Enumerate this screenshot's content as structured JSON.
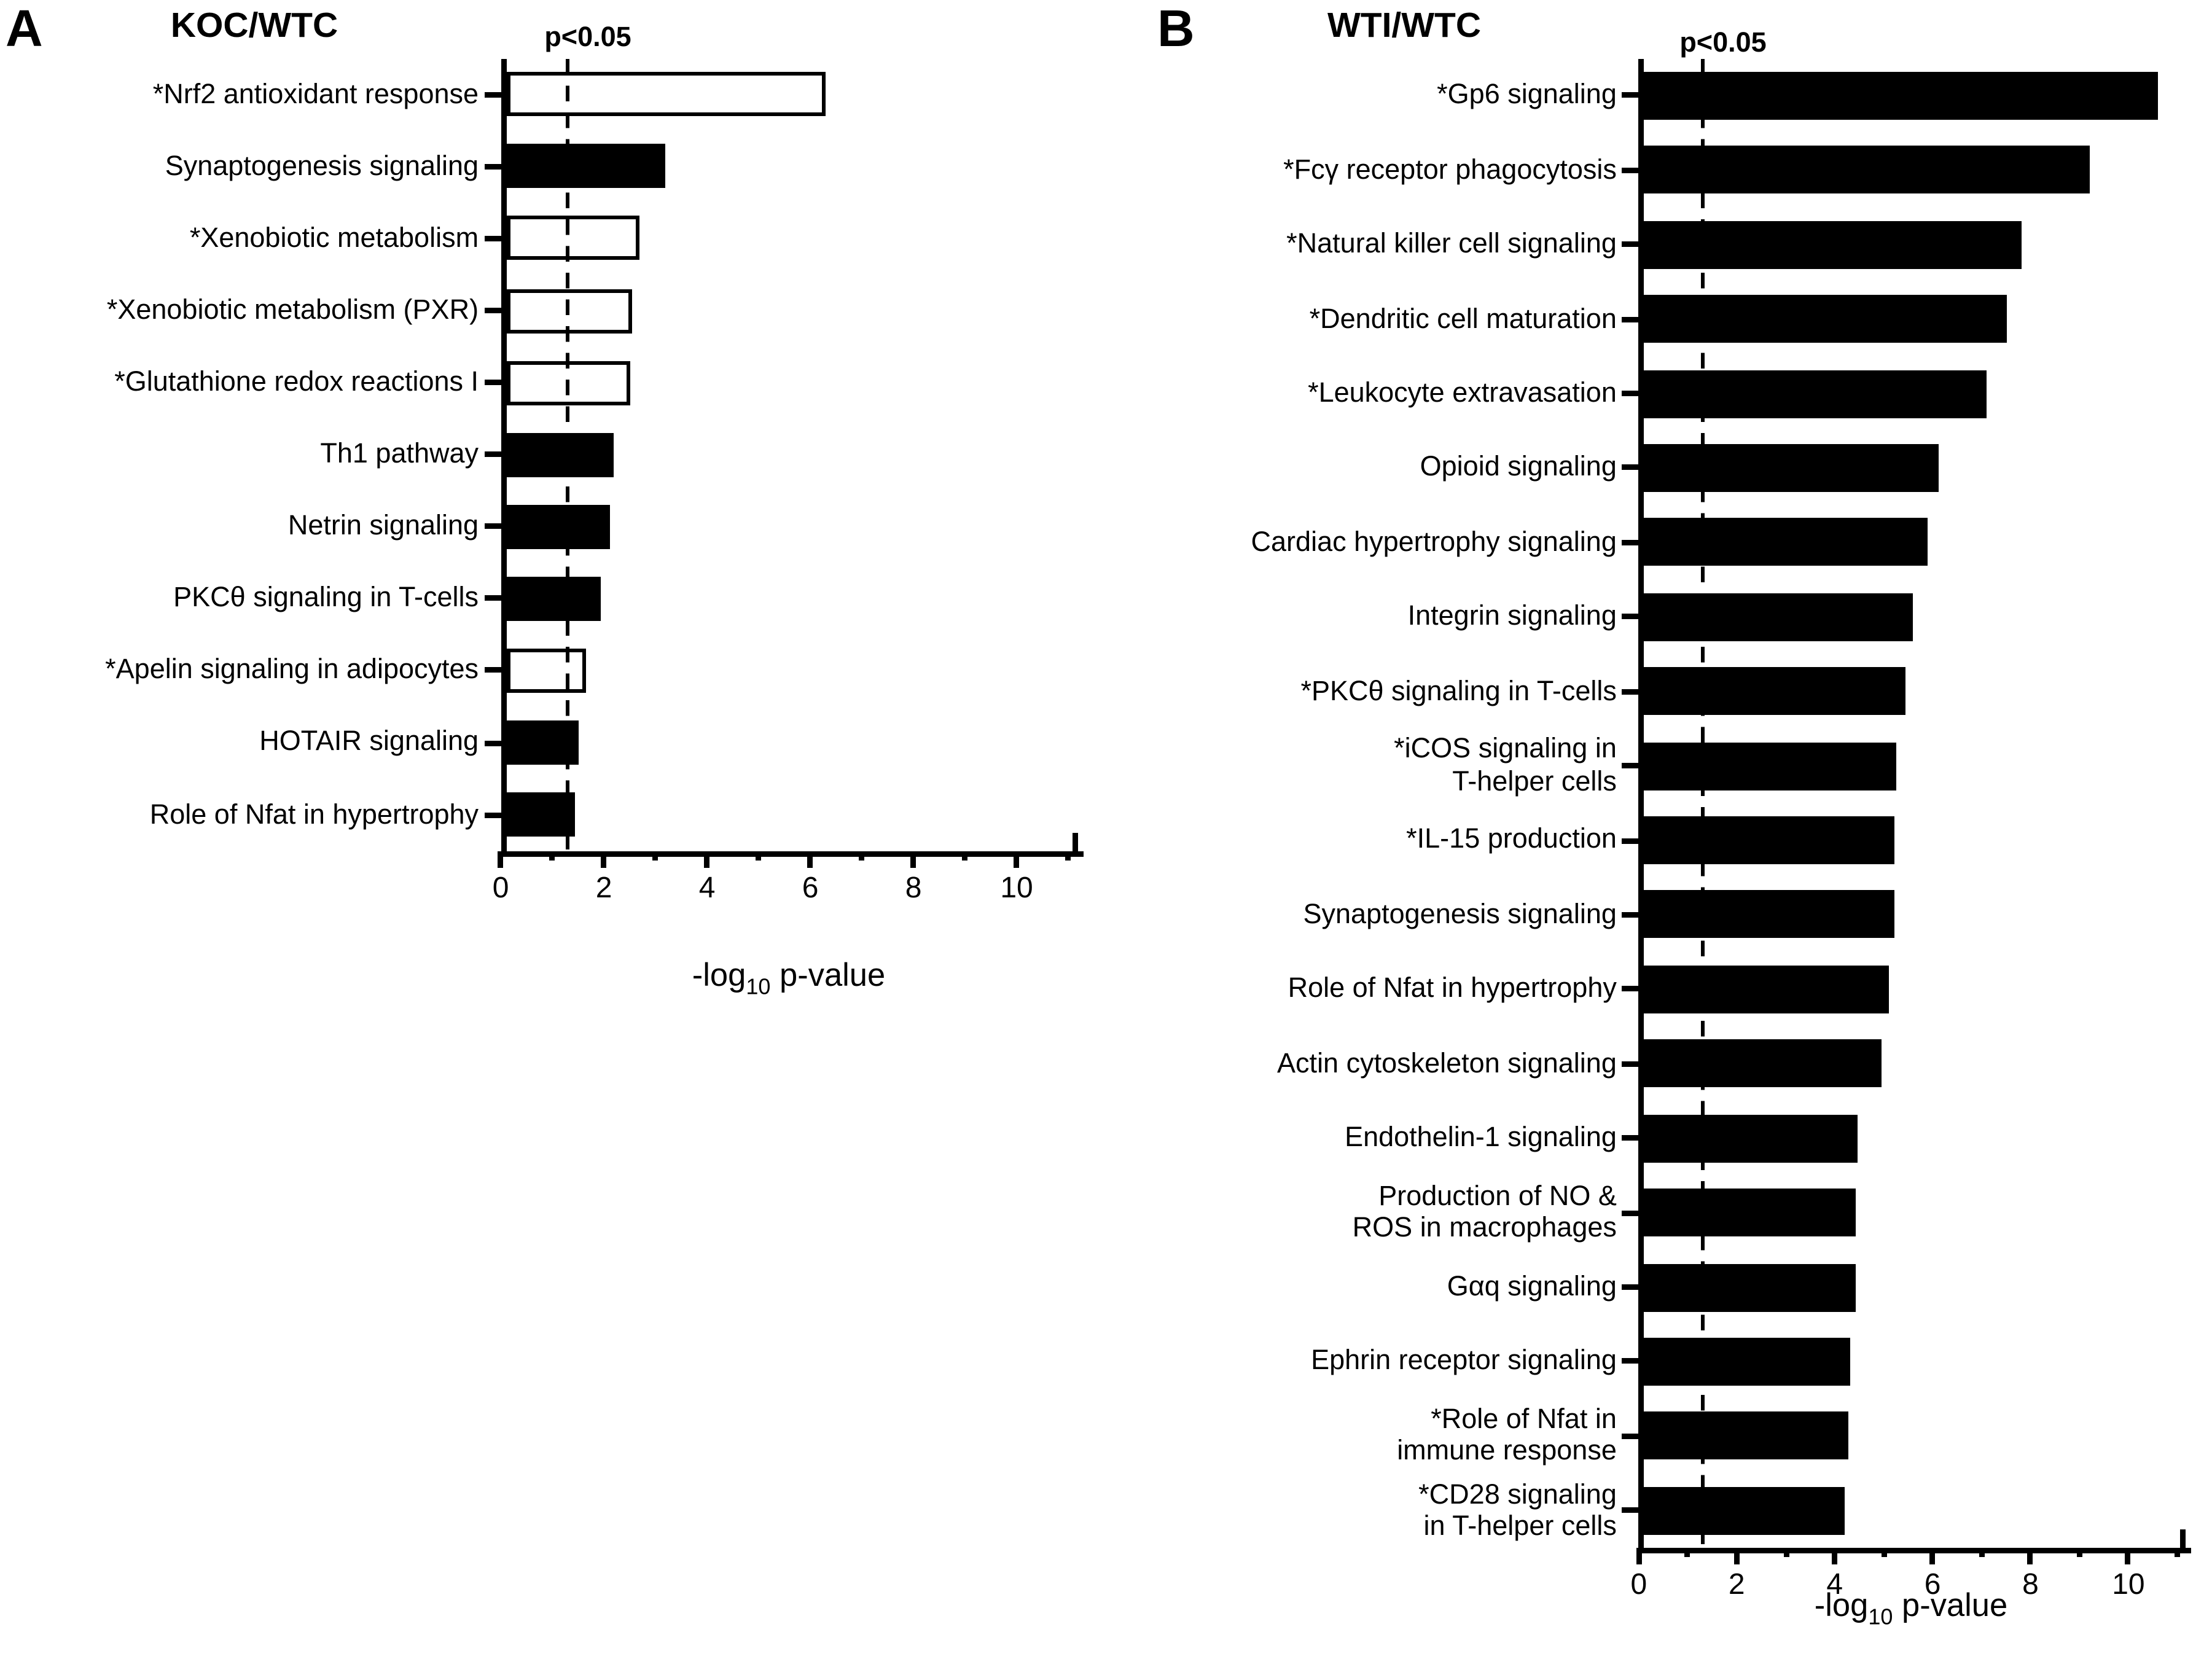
{
  "figure": {
    "panels": [
      {
        "letter": "A",
        "title": "KOC/WTC",
        "threshold_label": "p<0.05",
        "xlabel": {
          "prefix": "-log",
          "sub": "10",
          "suffix": " p-value"
        }
      },
      {
        "letter": "B",
        "title": "WTI/WTC",
        "threshold_label": "p<0.05",
        "xlabel": {
          "prefix": "-log",
          "sub": "10",
          "suffix": " p-value"
        }
      }
    ]
  },
  "chart_data": [
    {
      "type": "bar",
      "orientation": "horizontal",
      "panel": "A",
      "title": "KOC/WTC",
      "xlabel": "-log10 p-value",
      "xlim": [
        0,
        11.2
      ],
      "x_major_ticks": [
        0,
        2,
        4,
        6,
        8,
        10
      ],
      "x_major_tick_labels": [
        "0",
        "2",
        "4",
        "6",
        "8",
        "10"
      ],
      "x_minor_ticks": [
        1,
        3,
        5,
        7,
        9,
        11
      ],
      "threshold": {
        "value": 1.3,
        "label": "p<0.05",
        "style": "dashed"
      },
      "legend": "none",
      "grid": false,
      "categories": [
        "*Nrf2 antioxidant response",
        "Synaptogenesis signaling",
        "*Xenobiotic metabolism",
        "*Xenobiotic metabolism (PXR)",
        "*Glutathione redox reactions I",
        "Th1 pathway",
        "Netrin signaling",
        "PKCθ signaling in T-cells",
        "*Apelin signaling in adipocytes",
        "HOTAIR signaling",
        "Role of Nfat in hypertrophy"
      ],
      "values": [
        6.2,
        3.1,
        2.6,
        2.45,
        2.4,
        2.1,
        2.0,
        1.85,
        1.55,
        1.42,
        1.35
      ],
      "fills": [
        "white",
        "black",
        "white",
        "white",
        "white",
        "black",
        "black",
        "black",
        "white",
        "black",
        "black"
      ],
      "bar_color_black": "#000000",
      "bar_color_white": "#ffffff"
    },
    {
      "type": "bar",
      "orientation": "horizontal",
      "panel": "B",
      "title": "WTI/WTC",
      "xlabel": "-log10 p-value",
      "xlim": [
        0,
        11.15
      ],
      "x_major_ticks": [
        0,
        2,
        4,
        6,
        8,
        10
      ],
      "x_major_tick_labels": [
        "0",
        "2",
        "4",
        "6",
        "8",
        "10"
      ],
      "x_minor_ticks": [
        1,
        3,
        5,
        7,
        9,
        11
      ],
      "threshold": {
        "value": 1.3,
        "label": "p<0.05",
        "style": "dashed"
      },
      "legend": "none",
      "grid": false,
      "categories": [
        "*Gp6 signaling",
        "*Fcγ receptor phagocytosis",
        "*Natural killer cell signaling",
        "*Dendritic cell maturation",
        "*Leukocyte extravasation",
        "Opioid signaling",
        "Cardiac hypertrophy signaling",
        "Integrin signaling",
        "*PKCθ signaling in T-cells",
        "*iCOS signaling in\nT-helper cells",
        "*IL-15 production",
        "Synaptogenesis signaling",
        "Role of Nfat in hypertrophy",
        "Actin cytoskeleton signaling",
        "Endothelin-1 signaling",
        "Production of NO &\nROS in macrophages",
        "Gαq signaling",
        "Ephrin receptor signaling",
        "*Role of Nfat in\nimmune response",
        "*CD28 signaling\nin T-helper cells"
      ],
      "values": [
        10.5,
        9.1,
        7.7,
        7.4,
        7.0,
        6.0,
        5.8,
        5.5,
        5.35,
        5.15,
        5.1,
        5.1,
        5.0,
        4.85,
        4.35,
        4.3,
        4.3,
        4.2,
        4.15,
        4.1
      ],
      "fills": [
        "black",
        "black",
        "black",
        "black",
        "black",
        "black",
        "black",
        "black",
        "black",
        "black",
        "black",
        "black",
        "black",
        "black",
        "black",
        "black",
        "black",
        "black",
        "black",
        "black"
      ],
      "bar_color_black": "#000000"
    }
  ]
}
